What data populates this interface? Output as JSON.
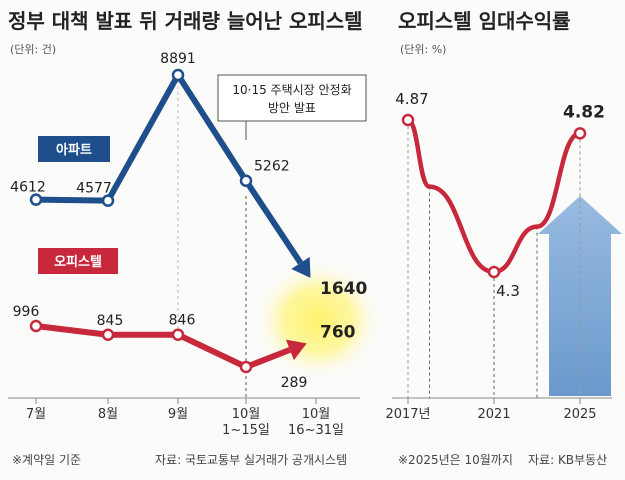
{
  "left": {
    "title": "정부 대책 발표 뒤 거래량 늘어난 오피스텔",
    "unit": "(단위: 건)",
    "note": "10·15 주택시장 안정화\n방안 발표",
    "footnote": "※계약일 기준",
    "source": "자료: 국토교통부 실거래가 공개시스템",
    "colors": {
      "apartment": "#1f4e8c",
      "officetel": "#c8283c",
      "highlight": "#fff36b"
    }
  },
  "right": {
    "title": "오피스텔 임대수익률",
    "unit": "(단위: %)",
    "footnote": "※2025년은 10월까지",
    "source": "자료: KB부동산",
    "colors": {
      "line": "#c8283c",
      "arrow": "#7fa8d6"
    }
  },
  "chart_data": [
    {
      "type": "line",
      "title": "정부 대책 발표 뒤 거래량 늘어난 오피스텔",
      "ylabel": "(단위: 건)",
      "categories": [
        "7월",
        "8월",
        "9월",
        "10월\n1~15일",
        "10월\n16~31일"
      ],
      "series": [
        {
          "name": "아파트",
          "values": [
            4612,
            4577,
            8891,
            5262,
            1640
          ]
        },
        {
          "name": "오피스텔",
          "values": [
            996,
            845,
            846,
            289,
            760
          ]
        }
      ],
      "value_labels": {
        "아파트": [
          "4612",
          "4577",
          "8891",
          "5262",
          "1640"
        ],
        "오피스텔": [
          "996",
          "845",
          "846",
          "289",
          "760"
        ]
      },
      "annotation": "10·15 주택시장 안정화\n방안 발표"
    },
    {
      "type": "line",
      "title": "오피스텔 임대수익률",
      "ylabel": "(단위: %)",
      "x_ticks": [
        "2017년",
        "2021",
        "2025"
      ],
      "series": [
        {
          "name": "",
          "points": [
            {
              "x": 2017,
              "y": 4.87
            },
            {
              "x": 2018,
              "y": 4.62
            },
            {
              "x": 2021,
              "y": 4.3
            },
            {
              "x": 2023,
              "y": 4.47
            },
            {
              "x": 2025,
              "y": 4.82
            }
          ]
        }
      ],
      "labels": [
        "4.87",
        "4.3",
        "4.82"
      ]
    }
  ]
}
